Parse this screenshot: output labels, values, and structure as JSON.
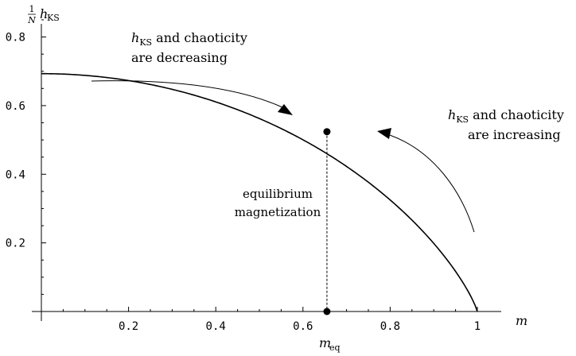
{
  "chart_data": {
    "type": "line",
    "title": "",
    "xlabel": "m",
    "ylabel": {
      "fraction_num": "1",
      "fraction_den": "N",
      "main": "h",
      "sub": "KS"
    },
    "xlim": [
      0,
      1
    ],
    "ylim": [
      0,
      0.88
    ],
    "x_ticks": [
      {
        "value": 0.2,
        "label": "0.2"
      },
      {
        "value": 0.4,
        "label": "0.4"
      },
      {
        "value": 0.6,
        "label": "0.6"
      },
      {
        "value": 0.8,
        "label": "0.8"
      },
      {
        "value": 1.0,
        "label": "1"
      }
    ],
    "y_ticks": [
      {
        "value": 0.2,
        "label": "0.2"
      },
      {
        "value": 0.4,
        "label": "0.4"
      },
      {
        "value": 0.6,
        "label": "0.6"
      },
      {
        "value": 0.8,
        "label": "0.8"
      }
    ],
    "grid": false,
    "series": [
      {
        "points": [
          [
            0.0,
            0.693
          ],
          [
            0.1,
            0.688
          ],
          [
            0.2,
            0.673
          ],
          [
            0.3,
            0.647
          ],
          [
            0.4,
            0.608
          ],
          [
            0.5,
            0.562
          ],
          [
            0.6,
            0.5
          ],
          [
            0.65,
            0.524
          ],
          [
            0.7,
            0.428
          ],
          [
            0.8,
            0.325
          ],
          [
            0.9,
            0.199
          ],
          [
            0.95,
            0.117
          ],
          [
            0.98,
            0.052
          ],
          [
            1.0,
            0.0
          ]
        ]
      }
    ],
    "equilibrium": {
      "m": 0.655,
      "h": 0.524
    },
    "annotations": {
      "eq_label_line1": "equilibrium",
      "eq_label_line2": "magnetization",
      "m_eq_main": "m",
      "m_eq_sub": "eq",
      "dec_line1_sym": "h",
      "dec_line1_sub": "KS",
      "dec_line1_rest": " and chaoticity",
      "dec_line2": "are decreasing",
      "inc_line1_sym": "h",
      "inc_line1_sub": "KS",
      "inc_line1_rest": " and chaoticity",
      "inc_line2": "are increasing"
    }
  }
}
